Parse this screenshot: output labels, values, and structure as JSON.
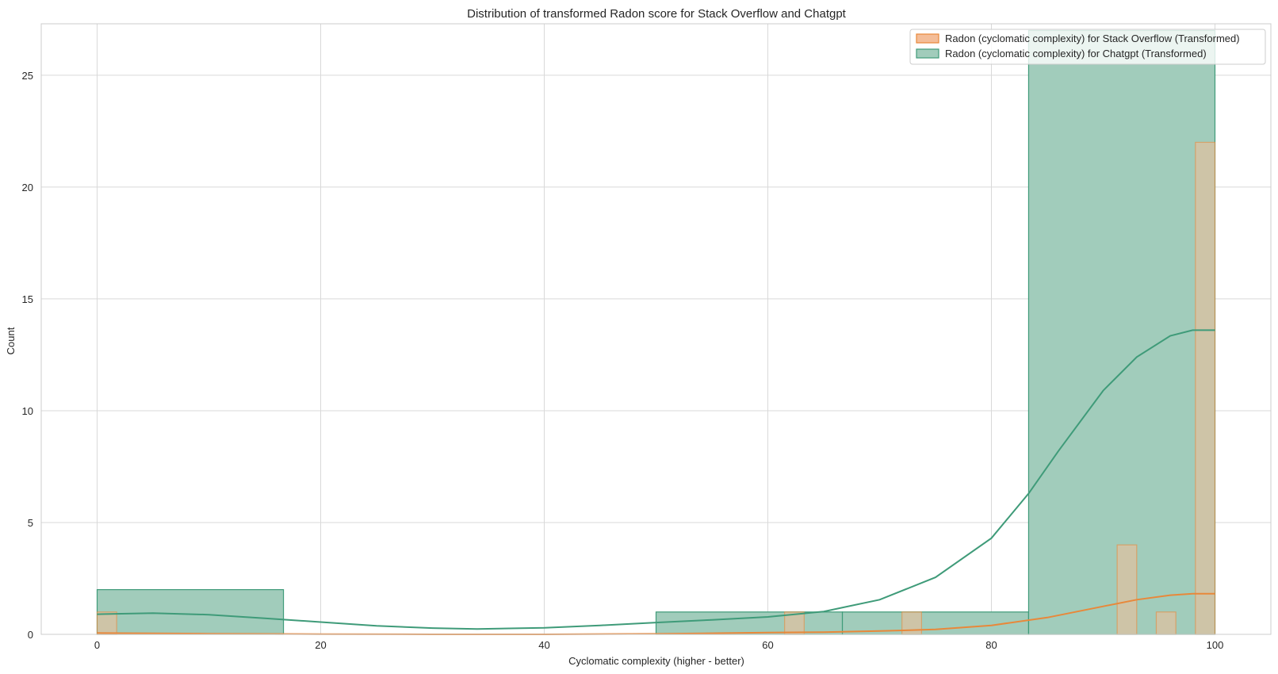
{
  "chart_data": {
    "type": "histogram",
    "title": "Distribution of transformed Radon score for Stack Overflow and Chatgpt",
    "xlabel": "Cyclomatic complexity (higher - better)",
    "ylabel": "Count",
    "xlim": [
      -5,
      105
    ],
    "ylim": [
      0,
      27.3
    ],
    "xticks": [
      0,
      20,
      40,
      60,
      80,
      100
    ],
    "yticks": [
      0,
      5,
      10,
      15,
      20,
      25
    ],
    "grid": true,
    "legend_position": "top-right",
    "series": [
      {
        "name": "Radon (cyclomatic complexity) for Chatgpt (Transformed)",
        "fill": "#a1ccbb",
        "stroke": "#3f9b79",
        "bins": [
          {
            "x0": 0,
            "x1": 16.67,
            "count": 2
          },
          {
            "x0": 16.67,
            "x1": 33.33,
            "count": 0
          },
          {
            "x0": 33.33,
            "x1": 50,
            "count": 0
          },
          {
            "x0": 50,
            "x1": 66.67,
            "count": 1
          },
          {
            "x0": 66.67,
            "x1": 83.33,
            "count": 1
          },
          {
            "x0": 83.33,
            "x1": 100,
            "count": 27
          }
        ],
        "kde": [
          [
            0,
            0.9
          ],
          [
            5,
            0.95
          ],
          [
            10,
            0.88
          ],
          [
            15,
            0.72
          ],
          [
            20,
            0.55
          ],
          [
            25,
            0.38
          ],
          [
            30,
            0.28
          ],
          [
            34,
            0.24
          ],
          [
            40,
            0.29
          ],
          [
            45,
            0.4
          ],
          [
            50,
            0.53
          ],
          [
            55,
            0.65
          ],
          [
            60,
            0.78
          ],
          [
            65,
            1.02
          ],
          [
            70,
            1.55
          ],
          [
            75,
            2.55
          ],
          [
            80,
            4.3
          ],
          [
            83.33,
            6.3
          ],
          [
            86,
            8.2
          ],
          [
            90,
            10.9
          ],
          [
            93,
            12.4
          ],
          [
            96,
            13.35
          ],
          [
            98,
            13.6
          ],
          [
            100,
            13.6
          ]
        ]
      },
      {
        "name": "Radon (cyclomatic complexity) for Stack Overflow (Transformed)",
        "fill": "#f4bd98",
        "stroke": "#e8883a",
        "bins": [
          {
            "x0": 0,
            "x1": 1.75,
            "count": 1
          },
          {
            "x0": 61.5,
            "x1": 63.25,
            "count": 1
          },
          {
            "x0": 72.0,
            "x1": 73.75,
            "count": 1
          },
          {
            "x0": 91.25,
            "x1": 93.0,
            "count": 4
          },
          {
            "x0": 94.75,
            "x1": 96.5,
            "count": 1
          },
          {
            "x0": 98.25,
            "x1": 100,
            "count": 22
          }
        ],
        "kde": [
          [
            0,
            0.06
          ],
          [
            10,
            0.03
          ],
          [
            20,
            0.01
          ],
          [
            30,
            0.0
          ],
          [
            40,
            0.0
          ],
          [
            50,
            0.02
          ],
          [
            55,
            0.05
          ],
          [
            60,
            0.08
          ],
          [
            65,
            0.1
          ],
          [
            70,
            0.15
          ],
          [
            75,
            0.22
          ],
          [
            80,
            0.4
          ],
          [
            85,
            0.75
          ],
          [
            90,
            1.25
          ],
          [
            93,
            1.55
          ],
          [
            96,
            1.75
          ],
          [
            98,
            1.82
          ],
          [
            100,
            1.82
          ]
        ]
      }
    ],
    "legend_order": [
      1,
      0
    ]
  }
}
